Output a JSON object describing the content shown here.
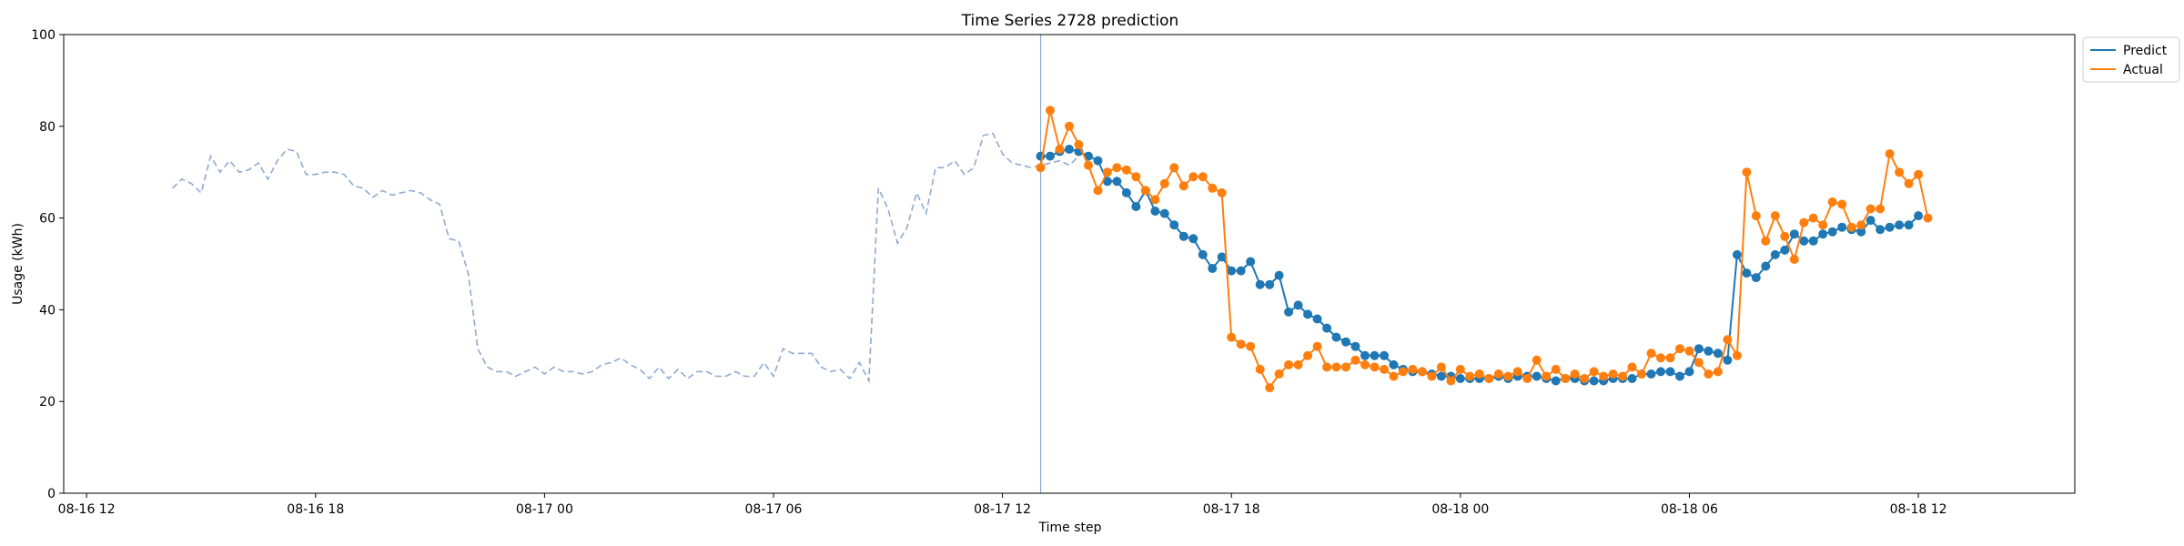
{
  "chart_data": {
    "type": "line",
    "title": "Time Series 2728 prediction",
    "xlabel": "Time step",
    "ylabel": "Usage (kWh)",
    "ylim": [
      0,
      100
    ],
    "yticks": [
      0,
      20,
      40,
      60,
      80,
      100
    ],
    "xticks": [
      {
        "t": 0,
        "label": "08-16 12"
      },
      {
        "t": 6,
        "label": "08-16 18"
      },
      {
        "t": 12,
        "label": "08-17 00"
      },
      {
        "t": 18,
        "label": "08-17 06"
      },
      {
        "t": 24,
        "label": "08-17 12"
      },
      {
        "t": 30,
        "label": "08-17 18"
      },
      {
        "t": 36,
        "label": "08-18 00"
      },
      {
        "t": 42,
        "label": "08-18 06"
      },
      {
        "t": 48,
        "label": "08-18 12"
      }
    ],
    "xlim": [
      -0.6,
      52.1
    ],
    "grid": false,
    "legend_position": "outside-top-right",
    "forecast_start": 25,
    "colors": {
      "history": "#8faacf",
      "predict": "#1f77b4",
      "actual": "#ff7f0e",
      "divider": "#8faacf"
    },
    "history": {
      "t0": 2.25,
      "step": 0.25,
      "values": [
        66.5,
        68.5,
        67.5,
        65.5,
        73.5,
        70,
        72.5,
        70,
        70.5,
        72,
        68.5,
        72.5,
        75,
        74.5,
        69.5,
        69.5,
        70,
        70,
        69.5,
        67,
        66.5,
        64.5,
        66,
        65,
        65.5,
        66,
        65.5,
        64,
        63,
        55.5,
        55,
        48,
        31.5,
        27.5,
        26.5,
        26.5,
        25.5,
        26.5,
        27.5,
        26,
        27.5,
        26.5,
        26.5,
        26,
        26.5,
        28,
        28.5,
        29.5,
        28,
        27,
        25,
        27.5,
        25,
        27,
        25,
        26.5,
        26.5,
        25.5,
        25.5,
        26.5,
        25.5,
        25.5,
        28.5,
        25.5,
        31.5,
        30.5,
        30.5,
        30.5,
        27.5,
        26.5,
        27,
        25,
        28.5,
        24.5,
        66.5,
        62,
        54.5,
        58,
        65.5,
        61,
        71,
        71,
        72.5,
        69.5,
        71,
        78,
        78.5,
        74,
        72,
        71.5,
        71,
        71.5,
        72,
        72.5,
        71.5,
        73.5
      ]
    },
    "series": [
      {
        "name": "Predict",
        "t0": 25,
        "step": 0.25,
        "values": [
          73.5,
          73.5,
          74.5,
          75,
          74.5,
          73.5,
          72.5,
          68,
          68,
          65.5,
          62.5,
          66,
          61.5,
          61,
          58.5,
          56,
          55.5,
          52,
          49,
          51.5,
          48.5,
          48.5,
          50.5,
          45.5,
          45.5,
          47.5,
          39.5,
          41,
          39,
          38,
          36,
          34,
          33,
          32,
          30,
          30,
          30,
          28,
          27,
          26.5,
          26.5,
          26,
          25.5,
          25.5,
          25,
          25,
          25,
          25,
          25.5,
          25,
          25.5,
          25.5,
          25.5,
          25,
          24.5,
          25,
          25,
          24.5,
          24.5,
          24.5,
          25,
          25,
          25,
          26,
          26,
          26.5,
          26.5,
          25.5,
          26.5,
          31.5,
          31,
          30.5,
          29,
          52,
          48,
          47,
          49.5,
          52,
          53,
          56.5,
          55,
          55,
          56.5,
          57,
          58,
          57.5,
          57,
          59.5,
          57.5,
          58,
          58.5,
          58.5,
          60.5
        ]
      },
      {
        "name": "Actual",
        "t0": 25,
        "step": 0.25,
        "values": [
          71,
          83.5,
          75,
          80,
          76,
          71.5,
          66,
          70,
          71,
          70.5,
          69,
          66,
          64,
          67.5,
          71,
          67,
          69,
          69,
          66.5,
          65.5,
          34,
          32.5,
          32,
          27,
          23,
          26,
          28,
          28,
          30,
          32,
          27.5,
          27.5,
          27.5,
          29,
          28,
          27.5,
          27,
          25.5,
          26.5,
          27,
          26.5,
          25.5,
          27.5,
          24.5,
          27,
          25.5,
          26,
          25,
          26,
          25.5,
          26.5,
          25,
          29,
          25.5,
          27,
          25,
          26,
          25,
          26.5,
          25.5,
          26,
          25.5,
          27.5,
          26,
          30.5,
          29.5,
          29.5,
          31.5,
          31,
          28.5,
          26,
          26.5,
          33.5,
          30,
          70,
          60.5,
          55,
          60.5,
          56,
          51,
          59,
          60,
          58.5,
          63.5,
          63,
          58,
          58.5,
          62,
          62,
          74,
          70,
          67.5,
          69.5,
          60
        ]
      }
    ]
  }
}
